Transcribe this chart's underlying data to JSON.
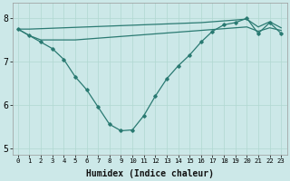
{
  "x": [
    0,
    1,
    2,
    3,
    4,
    5,
    6,
    7,
    8,
    9,
    10,
    11,
    12,
    13,
    14,
    15,
    16,
    17,
    18,
    19,
    20,
    21,
    22,
    23
  ],
  "line_top": [
    7.75,
    7.75,
    7.76,
    7.77,
    7.78,
    7.79,
    7.8,
    7.81,
    7.82,
    7.83,
    7.84,
    7.85,
    7.86,
    7.87,
    7.88,
    7.89,
    7.9,
    7.92,
    7.94,
    7.96,
    7.98,
    7.8,
    7.92,
    7.78
  ],
  "line_mid": [
    7.75,
    7.6,
    7.5,
    7.5,
    7.5,
    7.5,
    7.52,
    7.54,
    7.56,
    7.58,
    7.6,
    7.62,
    7.64,
    7.66,
    7.68,
    7.7,
    7.72,
    7.74,
    7.76,
    7.78,
    7.8,
    7.7,
    7.78,
    7.72
  ],
  "line_v": [
    7.75,
    7.6,
    7.45,
    7.3,
    7.05,
    6.65,
    6.35,
    5.95,
    5.55,
    5.4,
    5.42,
    5.75,
    6.2,
    6.6,
    6.9,
    7.15,
    7.45,
    7.7,
    7.85,
    7.9,
    8.0,
    7.65,
    7.9,
    7.65
  ],
  "color": "#2a7a72",
  "bg_color": "#cce8e8",
  "grid_color": "#b0d8d0",
  "xlabel": "Humidex (Indice chaleur)",
  "ylim": [
    4.85,
    8.35
  ],
  "xlim": [
    -0.5,
    23.5
  ],
  "yticks": [
    5,
    6,
    7,
    8
  ],
  "xticks": [
    0,
    1,
    2,
    3,
    4,
    5,
    6,
    7,
    8,
    9,
    10,
    11,
    12,
    13,
    14,
    15,
    16,
    17,
    18,
    19,
    20,
    21,
    22,
    23
  ]
}
